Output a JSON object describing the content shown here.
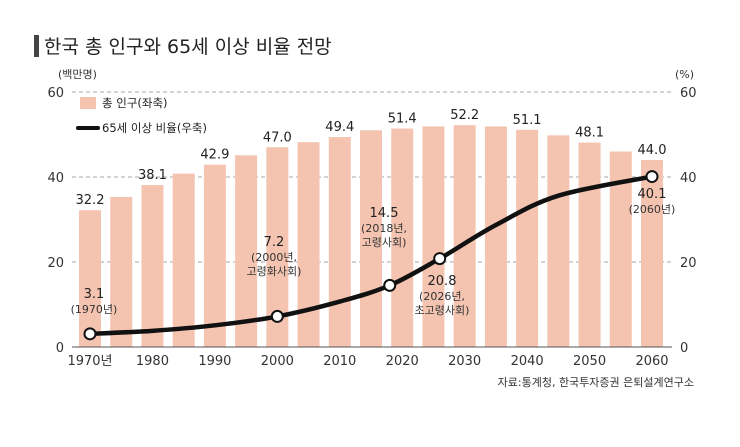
{
  "chart_data": {
    "type": "bar",
    "title": "한국 총 인구와 65세 이상 비율 전망",
    "left_unit": "(백만명)",
    "right_unit": "(%)",
    "source": "자료:통계청, 한국투자증권 은퇴설계연구소",
    "x_ticks": [
      "1970년",
      "1980",
      "1990",
      "2000",
      "2010",
      "2020",
      "2030",
      "2040",
      "2050",
      "2060"
    ],
    "y_ticks_left": [
      "0",
      "20",
      "40",
      "60"
    ],
    "y_ticks_right": [
      "0",
      "20",
      "40",
      "60"
    ],
    "ylim": [
      0,
      60
    ],
    "grid": true,
    "legend_position": "top-left",
    "colors": {
      "bar": "#f4c4b0",
      "line": "#111111",
      "marker_fill": "#ffffff",
      "title_bar": "#444444"
    },
    "series": [
      {
        "name": "총 인구(좌축)",
        "axis": "left",
        "kind": "bar",
        "x": [
          1970,
          1975,
          1980,
          1985,
          1990,
          1995,
          2000,
          2005,
          2010,
          2015,
          2020,
          2025,
          2030,
          2035,
          2040,
          2045,
          2050,
          2055,
          2060
        ],
        "values": [
          32.2,
          35.3,
          38.1,
          40.8,
          42.9,
          45.1,
          47.0,
          48.2,
          49.4,
          51.0,
          51.4,
          51.9,
          52.2,
          51.9,
          51.1,
          49.8,
          48.1,
          46.0,
          44.0
        ],
        "labels": [
          {
            "x": 1970,
            "text": "32.2"
          },
          {
            "x": 1980,
            "text": "38.1"
          },
          {
            "x": 1990,
            "text": "42.9"
          },
          {
            "x": 2000,
            "text": "47.0"
          },
          {
            "x": 2010,
            "text": "49.4"
          },
          {
            "x": 2020,
            "text": "51.4"
          },
          {
            "x": 2030,
            "text": "52.2"
          },
          {
            "x": 2040,
            "text": "51.1"
          },
          {
            "x": 2050,
            "text": "48.1"
          },
          {
            "x": 2060,
            "text": "44.0"
          }
        ]
      },
      {
        "name": "65세 이상 비율(우축)",
        "axis": "right",
        "kind": "line",
        "x": [
          1970,
          1980,
          1990,
          2000,
          2010,
          2018,
          2026,
          2035,
          2045,
          2060
        ],
        "values": [
          3.1,
          3.8,
          5.1,
          7.2,
          10.7,
          14.5,
          20.8,
          28.7,
          35.6,
          40.1
        ],
        "markers": [
          {
            "x": 1970,
            "value": 3.1,
            "label": "3.1",
            "note": "(1970년)"
          },
          {
            "x": 2000,
            "value": 7.2,
            "label": "7.2",
            "note": "(2000년,\n고령화사회)"
          },
          {
            "x": 2018,
            "value": 14.5,
            "label": "14.5",
            "note": "(2018년,\n고령사회)"
          },
          {
            "x": 2026,
            "value": 20.8,
            "label": "20.8",
            "note": "(2026년,\n초고령사회)"
          },
          {
            "x": 2060,
            "value": 40.1,
            "label": "40.1",
            "note": "(2060년)"
          }
        ]
      }
    ]
  }
}
